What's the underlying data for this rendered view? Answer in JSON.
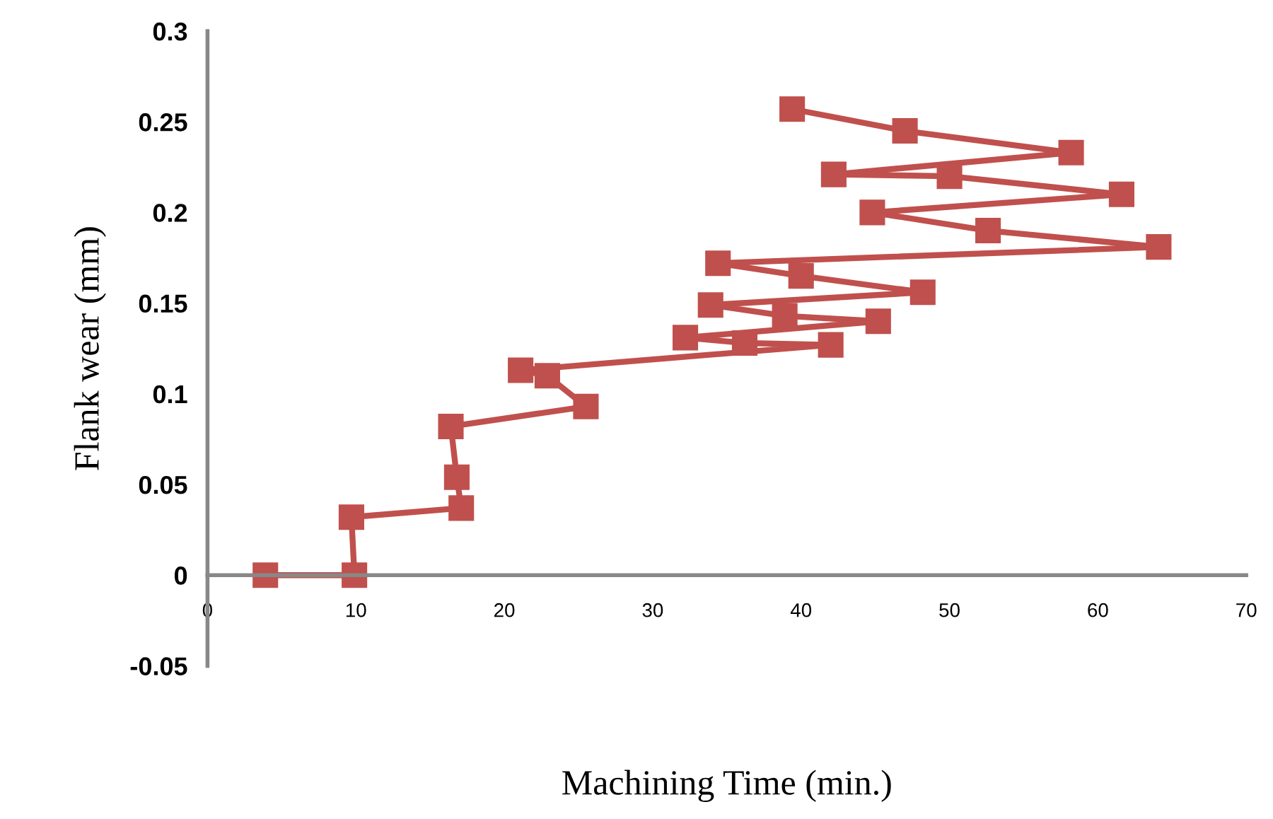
{
  "chart_data": {
    "type": "line",
    "xlabel": "Machining Time (min.)",
    "ylabel": "Flank wear (mm)",
    "xlim": [
      0,
      70
    ],
    "xticks": [
      0,
      10,
      20,
      30,
      40,
      50,
      60,
      70
    ],
    "ylim": [
      -0.05,
      0.3
    ],
    "yticks": [
      -0.05,
      0,
      0.05,
      0.1,
      0.15,
      0.2,
      0.25,
      0.3
    ],
    "grid": false,
    "legend": false,
    "marker": "square",
    "line_style": "solid",
    "series": [
      {
        "color": "#c0504d",
        "x": [
          3.9,
          9.9,
          9.7,
          17.1,
          16.8,
          16.4,
          25.5,
          22.9,
          21.1,
          42.0,
          36.2,
          32.2,
          45.2,
          38.9,
          33.9,
          48.2,
          40.0,
          34.4,
          64.1,
          52.6,
          44.8,
          61.6,
          50.0,
          42.2,
          58.2,
          47.0,
          39.4
        ],
        "values": [
          0,
          0,
          0.032,
          0.037,
          0.054,
          0.082,
          0.093,
          0.11,
          0.113,
          0.127,
          0.128,
          0.131,
          0.14,
          0.143,
          0.149,
          0.156,
          0.165,
          0.172,
          0.181,
          0.19,
          0.2,
          0.21,
          0.22,
          0.221,
          0.233,
          0.245,
          0.257
        ]
      }
    ]
  }
}
